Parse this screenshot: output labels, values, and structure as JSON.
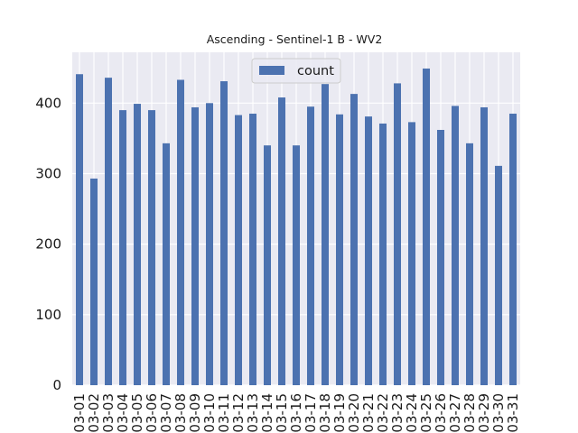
{
  "chart_data": {
    "type": "bar",
    "title": "Ascending - Sentinel-1 B - WV2",
    "xlabel": "",
    "ylabel": "",
    "ylim": [
      0,
      472
    ],
    "yticks": [
      0,
      100,
      200,
      300,
      400
    ],
    "grid": true,
    "legend_position": "top-center",
    "categories": [
      "03-01",
      "03-02",
      "03-03",
      "03-04",
      "03-05",
      "03-06",
      "03-07",
      "03-08",
      "03-09",
      "03-10",
      "03-11",
      "03-12",
      "03-13",
      "03-14",
      "03-15",
      "03-16",
      "03-17",
      "03-18",
      "03-19",
      "03-20",
      "03-21",
      "03-22",
      "03-23",
      "03-24",
      "03-25",
      "03-26",
      "03-27",
      "03-28",
      "03-29",
      "03-30",
      "03-31"
    ],
    "series": [
      {
        "name": "count",
        "color": "#4c72b0",
        "values": [
          441,
          293,
          436,
          390,
          399,
          390,
          343,
          433,
          394,
          400,
          431,
          383,
          385,
          340,
          408,
          340,
          395,
          427,
          384,
          413,
          381,
          371,
          428,
          373,
          449,
          362,
          396,
          343,
          394,
          311,
          385
        ]
      }
    ]
  },
  "colors": {
    "plot_background": "#eaeaf2",
    "grid": "#ffffff",
    "bar": "#4c72b0"
  }
}
